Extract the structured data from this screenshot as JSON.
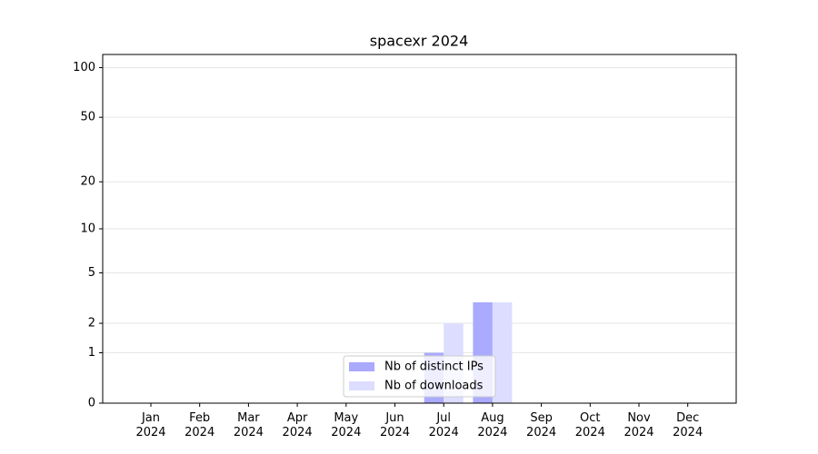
{
  "chart_data": {
    "type": "bar",
    "title": "spacexr 2024",
    "categories": [
      "Jan\n2024",
      "Feb\n2024",
      "Mar\n2024",
      "Apr\n2024",
      "May\n2024",
      "Jun\n2024",
      "Jul\n2024",
      "Aug\n2024",
      "Sep\n2024",
      "Oct\n2024",
      "Nov\n2024",
      "Dec\n2024"
    ],
    "series": [
      {
        "name": "Nb of distinct IPs",
        "color": "#aaaaff",
        "values": [
          0,
          0,
          0,
          0,
          0,
          0,
          1,
          3,
          0,
          0,
          0,
          0
        ]
      },
      {
        "name": "Nb of downloads",
        "color": "#ddddff",
        "values": [
          0,
          0,
          0,
          0,
          0,
          0,
          2,
          3,
          0,
          0,
          0,
          0
        ]
      }
    ],
    "yscale": "symlog",
    "ylim": [
      0,
      120
    ],
    "yticks": [
      0,
      1,
      2,
      5,
      10,
      20,
      50,
      100
    ],
    "grid": true,
    "legend": "lower center"
  }
}
